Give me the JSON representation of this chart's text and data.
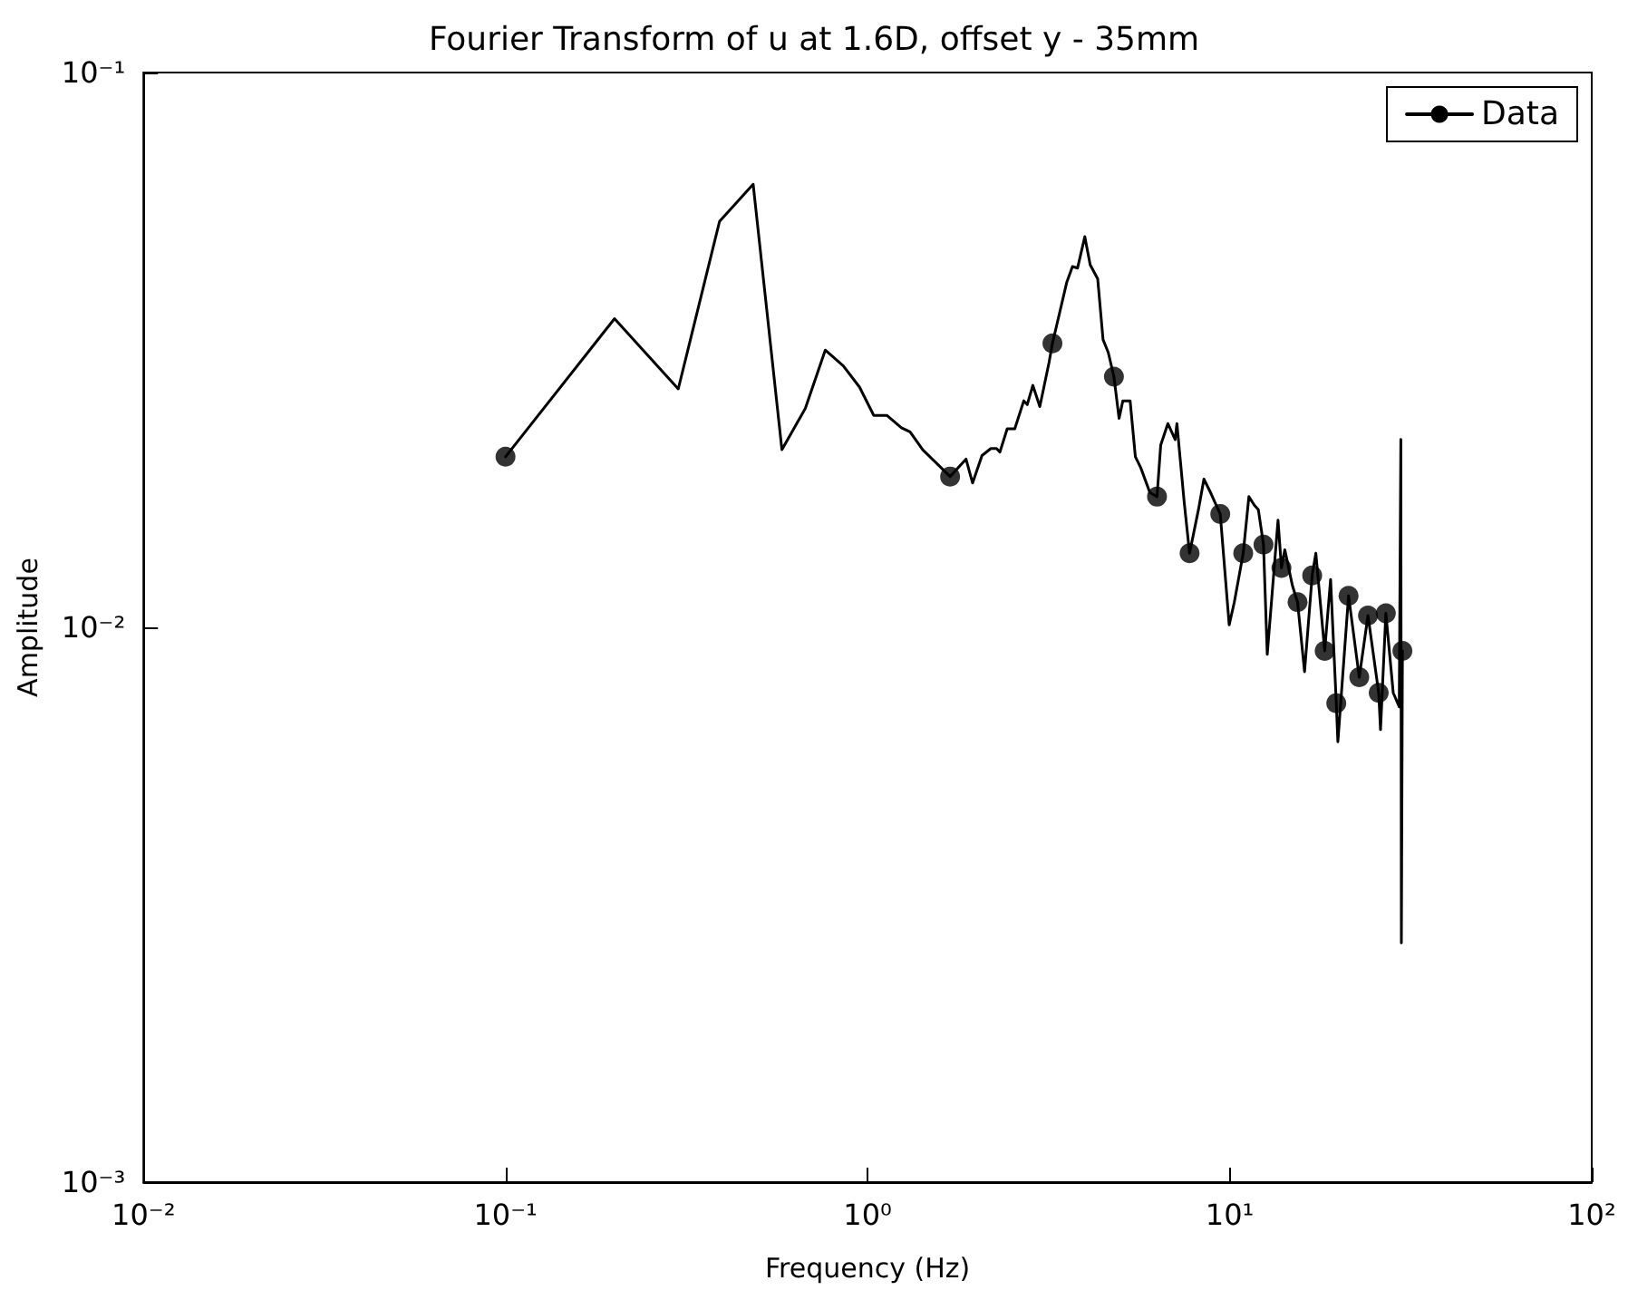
{
  "chart_data": {
    "type": "line",
    "title": "Fourier Transform of u at 1.6D, offset y - 35mm",
    "xlabel": "Frequency (Hz)",
    "ylabel": "Amplitude",
    "log": "xy",
    "grid": false,
    "legend": "top right",
    "xlim": [
      0.01,
      100
    ],
    "xticks": [
      {
        "value": 0.01,
        "label": "10⁻²"
      },
      {
        "value": 0.1,
        "label": "10⁻¹"
      },
      {
        "value": 1,
        "label": "10⁰"
      },
      {
        "value": 10,
        "label": "10¹"
      },
      {
        "value": 100,
        "label": "10²"
      }
    ],
    "ylim": [
      0.001,
      0.1
    ],
    "yticks": [
      {
        "value": 0.001,
        "label": "10⁻³"
      },
      {
        "value": 0.01,
        "label": "10⁻²"
      },
      {
        "value": 0.1,
        "label": "10⁻¹"
      }
    ],
    "series": [
      {
        "name": "Data",
        "color": "#000000",
        "marker": "none",
        "x": [
          0.1,
          0.2,
          0.3,
          0.39,
          0.483,
          0.58,
          0.673,
          0.764,
          0.857,
          0.95,
          1.04,
          1.13,
          1.24,
          1.31,
          1.42,
          1.69,
          1.87,
          1.95,
          2.07,
          2.19,
          2.27,
          2.32,
          2.43,
          2.55,
          2.7,
          2.76,
          2.86,
          2.99,
          3.17,
          3.24,
          3.55,
          3.68,
          3.8,
          3.98,
          4.12,
          4.32,
          4.47,
          4.62,
          4.79,
          4.95,
          5.07,
          5.31,
          5.49,
          5.68,
          6.02,
          6.3,
          6.45,
          6.75,
          7.07,
          7.15,
          7.49,
          7.75,
          8.2,
          8.49,
          8.89,
          9.42,
          9.97,
          10.3,
          10.9,
          11.3,
          11.7,
          12.0,
          12.4,
          12.7,
          13.6,
          13.9,
          14.2,
          14.9,
          15.4,
          16.1,
          16.9,
          17.3,
          18.3,
          19.0,
          19.7,
          19.9,
          21.3,
          22.8,
          24.1,
          25.8,
          26.1,
          27.0,
          28.3,
          29.4,
          29.7,
          29.8,
          30.0
        ],
        "values": [
          0.0203,
          0.036,
          0.0269,
          0.0539,
          0.0629,
          0.0209,
          0.0248,
          0.0316,
          0.0296,
          0.0271,
          0.0241,
          0.0241,
          0.0229,
          0.0225,
          0.0209,
          0.0187,
          0.0201,
          0.0182,
          0.0204,
          0.021,
          0.021,
          0.0207,
          0.0228,
          0.0228,
          0.0256,
          0.0252,
          0.0273,
          0.025,
          0.03,
          0.0325,
          0.0419,
          0.0447,
          0.0444,
          0.0506,
          0.045,
          0.0425,
          0.033,
          0.0313,
          0.0283,
          0.0238,
          0.0256,
          0.0256,
          0.0203,
          0.0194,
          0.0175,
          0.0172,
          0.0213,
          0.0233,
          0.0218,
          0.0233,
          0.0168,
          0.0136,
          0.0163,
          0.0185,
          0.0174,
          0.016,
          0.0101,
          0.0111,
          0.0136,
          0.0172,
          0.0166,
          0.0163,
          0.0141,
          0.00894,
          0.0156,
          0.0128,
          0.0138,
          0.0119,
          0.0111,
          0.00832,
          0.0124,
          0.0136,
          0.00907,
          0.0122,
          0.0073,
          0.00622,
          0.0114,
          0.00813,
          0.0105,
          0.00762,
          0.00654,
          0.0106,
          0.00762,
          0.00719,
          0.0218,
          0.0027,
          0.00907
        ]
      },
      {
        "type": "scatter",
        "color": "#000000",
        "marker": "circle",
        "x": [
          0.1,
          1.69,
          3.24,
          4.79,
          6.3,
          7.75,
          9.42,
          10.9,
          12.4,
          13.9,
          15.4,
          16.9,
          18.3,
          19.7,
          21.3,
          22.8,
          24.1,
          25.8,
          27.0,
          30.0
        ],
        "values": [
          0.0203,
          0.0187,
          0.0325,
          0.0283,
          0.0172,
          0.0136,
          0.016,
          0.0136,
          0.0141,
          0.0128,
          0.0111,
          0.0124,
          0.00907,
          0.0073,
          0.0114,
          0.00813,
          0.0105,
          0.00762,
          0.0106,
          0.00907
        ]
      }
    ]
  }
}
